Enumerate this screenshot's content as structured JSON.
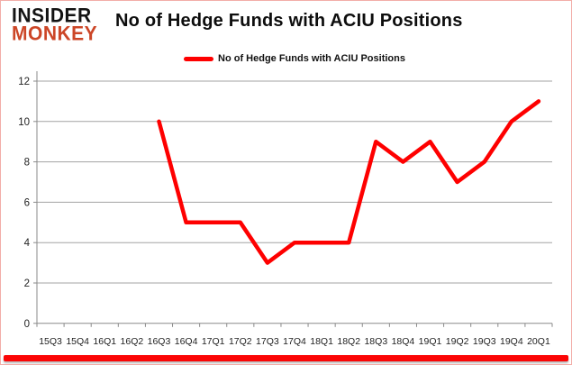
{
  "logo": {
    "line1": "INSIDER",
    "line2": "MONKEY"
  },
  "header": {
    "title": "No of Hedge Funds with ACIU Positions"
  },
  "legend": {
    "label": "No of Hedge Funds with ACIU Positions"
  },
  "colors": {
    "series_red": "#fe0000",
    "logo_black": "#131313",
    "logo_orange": "#cc4627",
    "card_border_pink": "#f2aea8",
    "bottom_bar_red": "#fb0505",
    "gridline_gray": "#a3a3a3",
    "axis_gray": "#8a8a8a",
    "tick_label": "#222222"
  },
  "chart_data": {
    "type": "line",
    "title": "No of Hedge Funds with ACIU Positions",
    "categories": [
      "15Q3",
      "15Q4",
      "16Q1",
      "16Q2",
      "16Q3",
      "16Q4",
      "17Q1",
      "17Q2",
      "17Q3",
      "17Q4",
      "18Q1",
      "18Q2",
      "18Q3",
      "18Q4",
      "19Q1",
      "19Q2",
      "19Q3",
      "19Q4",
      "20Q1"
    ],
    "series": [
      {
        "name": "No of Hedge Funds with ACIU Positions",
        "color": "#fe0000",
        "values": [
          null,
          null,
          null,
          null,
          10,
          5,
          5,
          5,
          3,
          4,
          4,
          4,
          9,
          8,
          9,
          7,
          8,
          10,
          11
        ]
      }
    ],
    "ylim": [
      0,
      12
    ],
    "ytick_interval": 2,
    "grid": true,
    "legend_position": "top-center"
  }
}
